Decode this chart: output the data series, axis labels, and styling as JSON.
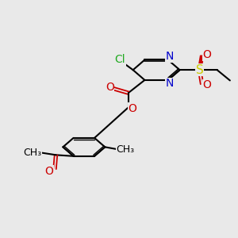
{
  "bg_color": "#e9e9e9",
  "atom_colors": {
    "C": "#000000",
    "N": "#0000cc",
    "O": "#cc0000",
    "Cl": "#22aa22",
    "S": "#cccc00"
  },
  "bond_color": "#000000",
  "bond_width": 1.5,
  "font_size": 10
}
